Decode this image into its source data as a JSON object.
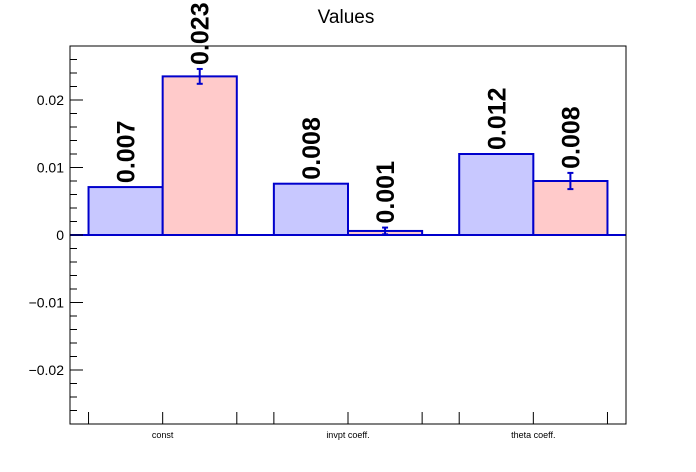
{
  "chart_data": {
    "type": "bar",
    "title": "Values",
    "xlabel": "",
    "ylabel": "",
    "categories": [
      "const",
      "invpt coeff.",
      "theta coeff."
    ],
    "series": [
      {
        "values": [
          0.0071,
          0.0076,
          0.012
        ],
        "labels": [
          "0.007",
          "0.008",
          "0.012"
        ],
        "errors": [
          0,
          0,
          0
        ],
        "fill": "#c8c8ff",
        "stroke": "#0000cc"
      },
      {
        "values": [
          0.0235,
          0.0006,
          0.008
        ],
        "labels": [
          "0.023",
          "0.001",
          "0.008"
        ],
        "errors": [
          0.0011,
          0.0005,
          0.0012
        ],
        "fill": "#ffcaca",
        "stroke": "#0000cc"
      }
    ],
    "ylim": [
      -0.028,
      0.028
    ],
    "yticks": [
      -0.02,
      -0.01,
      0,
      0.01,
      0.02
    ],
    "ytick_labels": [
      "−0.02",
      "−0.01",
      "0",
      "0.01",
      "0.02"
    ],
    "grid": false,
    "legend": "none"
  }
}
